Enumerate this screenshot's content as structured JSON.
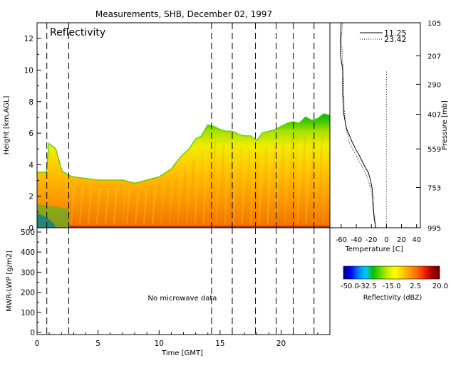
{
  "title": "Measurements, SHB, December 02, 1997",
  "chart_data": [
    {
      "type": "heatmap",
      "panel_label": "Reflectivity",
      "ylabel": "Height [km,AGL]",
      "ylim": [
        0,
        13
      ],
      "y_ticks": [
        0,
        2,
        4,
        6,
        8,
        10,
        12
      ],
      "xlim": [
        0,
        24
      ],
      "grid": false,
      "vertical_markers_gmt": [
        0.8,
        2.6,
        14.3,
        16.0,
        17.9,
        19.6,
        21.0,
        22.7
      ],
      "echo_top_profile": {
        "time_gmt": [
          0,
          0.8,
          1.0,
          1.5,
          2.0,
          2.6,
          3.0,
          4.0,
          5.0,
          6.0,
          7.0,
          8.0,
          9.0,
          10.0,
          11.0,
          11.8,
          12.5,
          13.0,
          13.5,
          14.0,
          14.5,
          15.0,
          15.5,
          16.0,
          16.5,
          17.0,
          17.5,
          18.0,
          18.5,
          19.0,
          19.5,
          20.0,
          20.5,
          21.0,
          21.5,
          22.0,
          22.5,
          23.0,
          23.5,
          24.0
        ],
        "top_km": [
          3.5,
          3.5,
          5.3,
          5.0,
          3.6,
          3.3,
          3.2,
          3.1,
          3.0,
          3.0,
          3.0,
          2.8,
          3.0,
          3.2,
          3.7,
          4.5,
          5.0,
          5.6,
          5.8,
          6.5,
          6.4,
          6.2,
          6.1,
          6.1,
          5.9,
          5.8,
          5.8,
          5.5,
          6.0,
          6.1,
          6.2,
          6.4,
          6.6,
          6.7,
          6.6,
          7.0,
          6.8,
          6.9,
          7.2,
          7.1
        ]
      },
      "colorbar": {
        "label": "Reflectivity (dBZ)",
        "ticks": [
          "-50.0",
          "-32.5",
          "-15.0",
          "2.5",
          "20.0"
        ],
        "colors": [
          "#000080",
          "#0000ff",
          "#0080ff",
          "#00c8ff",
          "#00c000",
          "#66dd00",
          "#ccee00",
          "#ffff00",
          "#ffcc00",
          "#ff9900",
          "#ff6600",
          "#ee2200",
          "#aa0000",
          "#660000"
        ]
      }
    },
    {
      "type": "line",
      "xlabel": "Temperature [C]",
      "ylabel": "Pressure [mb]",
      "x_ticks": [
        "-60",
        "-40",
        "-20",
        "0",
        "20",
        "40"
      ],
      "xlim": [
        -75,
        45
      ],
      "y_ticks": [
        "105",
        "207",
        "290",
        "407",
        "559",
        "753",
        "995"
      ],
      "ylim_km": [
        0,
        13
      ],
      "y_tick_heights_km": [
        13,
        10.9,
        9.1,
        7.2,
        5.0,
        2.55,
        0
      ],
      "series": [
        {
          "name": "11.25",
          "style": "solid",
          "temperature_c": [
            -14,
            -16,
            -17,
            -18,
            -18,
            -19,
            -21,
            -24,
            -30,
            -35,
            -41,
            -46,
            -53,
            -57,
            -58,
            -58,
            -61,
            -61,
            -60
          ],
          "height_km": [
            0.0,
            0.5,
            1.0,
            1.5,
            2.0,
            2.5,
            3.0,
            3.5,
            4.0,
            4.5,
            5.0,
            5.5,
            6.3,
            7.3,
            8.5,
            10.0,
            11.0,
            12.0,
            13.0
          ]
        },
        {
          "name": "23.42",
          "style": "dotted",
          "temperature_c": [
            -14,
            -15,
            -17,
            -17,
            -19,
            -21,
            -24,
            -28,
            -34,
            -39,
            -45,
            -50,
            -54,
            -56,
            -57,
            -58,
            -60,
            -58
          ],
          "height_km": [
            0.0,
            0.5,
            1.0,
            1.5,
            2.0,
            2.5,
            3.0,
            3.5,
            4.0,
            4.5,
            5.0,
            5.5,
            6.5,
            7.5,
            9.0,
            10.5,
            12.0,
            13.0
          ]
        }
      ],
      "zero_line": {
        "temperature_c": 0,
        "style": "dotted"
      }
    },
    {
      "type": "line",
      "xlabel": "Time [GMT]",
      "ylabel": "MWR-LWP [g/m2]",
      "ylim": [
        0,
        500
      ],
      "y_ticks": [
        0,
        100,
        200,
        300,
        400,
        500
      ],
      "xlim": [
        0,
        24
      ],
      "x_ticks": [
        0,
        5,
        10,
        15,
        20
      ],
      "annotation": "No microwave data",
      "vertical_markers_gmt": [
        0.8,
        2.6,
        14.3,
        16.0,
        17.9,
        19.6,
        21.0,
        22.7
      ]
    }
  ]
}
